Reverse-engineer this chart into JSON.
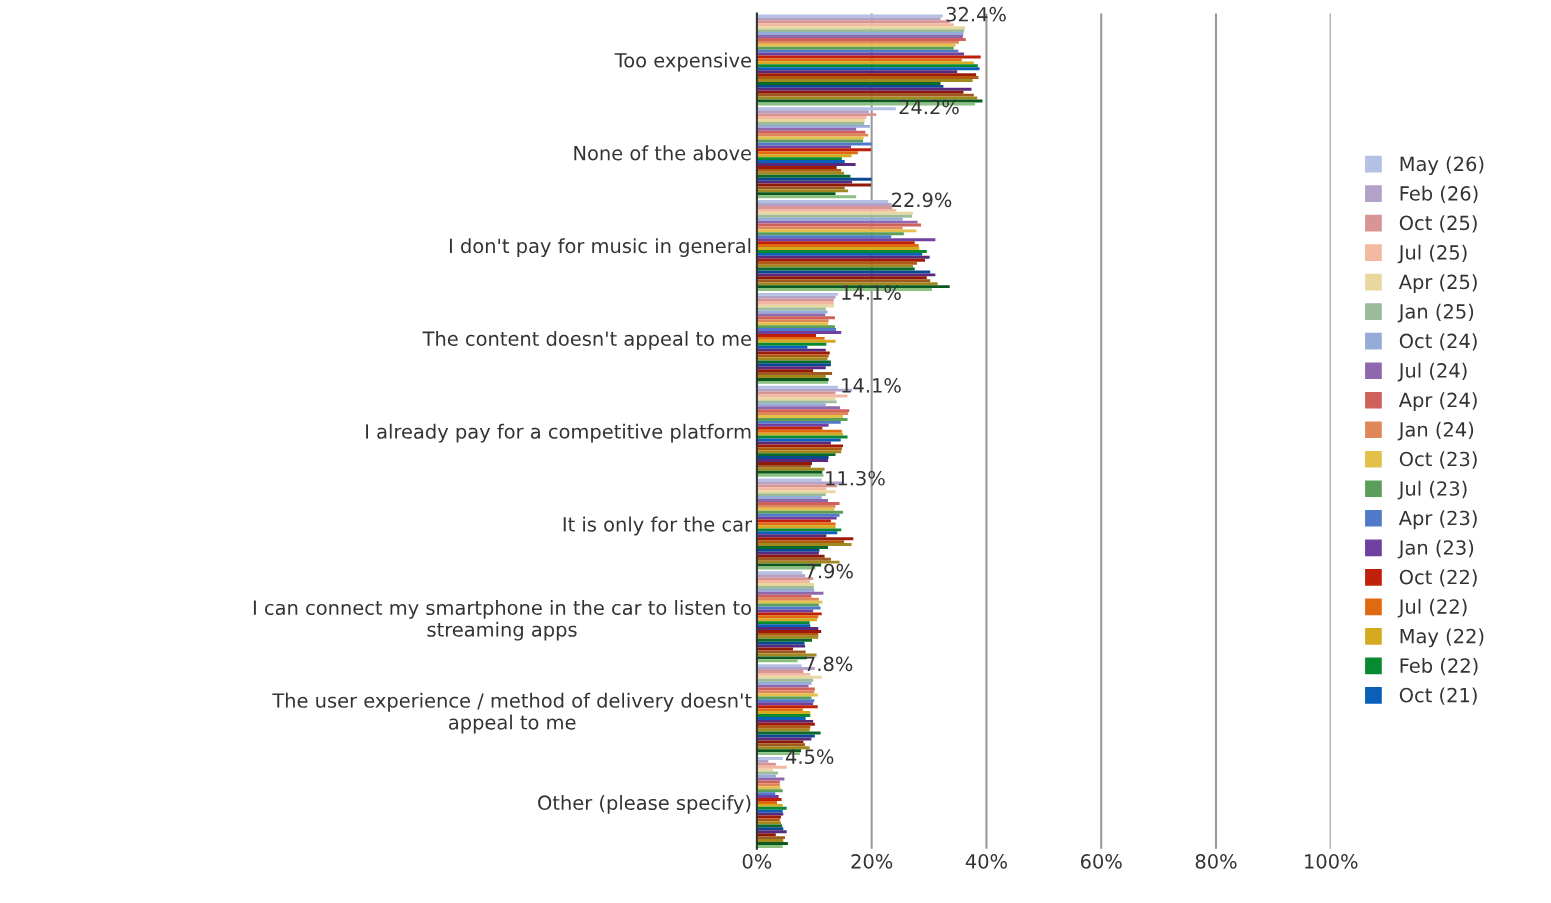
{
  "chart_data": {
    "type": "bar",
    "orientation": "horizontal",
    "categories": [
      "Too expensive",
      "None of the above",
      "I don't pay for music in general",
      "The content doesn't appeal to me",
      "I already pay for a competitive platform",
      "It is only for the car",
      "I can connect my smartphone in the car to listen to\nstreaming apps",
      "The user experience / method of delivery doesn't\nappeal to me",
      "Other (please specify)"
    ],
    "series": [
      {
        "name": "May (26)",
        "color": "#b4c0e4",
        "values": [
          32.4,
          24.2,
          22.9,
          14.1,
          14.1,
          11.3,
          7.9,
          7.8,
          4.5
        ],
        "value_labels": [
          "32.4%",
          "24.2%",
          "22.9%",
          "14.1%",
          "14.1%",
          "11.3%",
          "7.9%",
          "7.8%",
          "4.5%"
        ]
      },
      {
        "name": "Feb (26)",
        "color": "#b3a2c7",
        "values": [
          32.0,
          19.5,
          23.5,
          13.7,
          16.6,
          14.9,
          8.4,
          10.1,
          2.0
        ]
      },
      {
        "name": "Oct (25)",
        "color": "#d99594",
        "values": [
          33.6,
          20.8,
          23.6,
          13.4,
          13.7,
          14.0,
          9.8,
          8.1,
          3.3
        ]
      },
      {
        "name": "Jul (25)",
        "color": "#f2b8a2",
        "values": [
          34.3,
          19.1,
          24.3,
          13.4,
          15.8,
          12.1,
          9.2,
          9.3,
          5.2
        ]
      },
      {
        "name": "Apr (25)",
        "color": "#e8d8a0",
        "values": [
          36.3,
          18.8,
          27.2,
          13.4,
          13.7,
          13.7,
          10.0,
          11.3,
          2.8
        ]
      },
      {
        "name": "Jan (25)",
        "color": "#9bbb9b",
        "values": [
          36.1,
          18.7,
          27.0,
          12.0,
          13.9,
          12.0,
          9.9,
          9.8,
          3.7
        ]
      },
      {
        "name": "Oct (24)",
        "color": "#95abd8",
        "values": [
          36.0,
          19.7,
          25.4,
          12.3,
          12.0,
          11.3,
          10.0,
          9.5,
          3.3
        ]
      },
      {
        "name": "Jul (24)",
        "color": "#8e68ad",
        "values": [
          35.9,
          17.3,
          28.0,
          11.9,
          14.5,
          12.4,
          11.6,
          9.0,
          4.8
        ]
      },
      {
        "name": "Apr (24)",
        "color": "#d0605b",
        "values": [
          36.4,
          18.9,
          28.6,
          13.6,
          16.1,
          14.4,
          9.5,
          10.1,
          4.0
        ]
      },
      {
        "name": "Jan (24)",
        "color": "#e0875a",
        "values": [
          35.2,
          19.4,
          25.4,
          12.5,
          15.9,
          13.7,
          10.8,
          10.0,
          4.0
        ]
      },
      {
        "name": "Oct (23)",
        "color": "#e3c04a",
        "values": [
          34.6,
          18.6,
          27.8,
          12.4,
          15.0,
          13.5,
          11.4,
          10.6,
          4.1
        ]
      },
      {
        "name": "Jul (23)",
        "color": "#5a9e5a",
        "values": [
          34.3,
          18.5,
          25.6,
          13.6,
          15.8,
          15.0,
          10.8,
          9.5,
          4.5
        ]
      },
      {
        "name": "Apr (23)",
        "color": "#4f7ac8",
        "values": [
          35.1,
          20.0,
          23.4,
          13.8,
          14.6,
          14.4,
          11.1,
          10.0,
          3.2
        ]
      },
      {
        "name": "Jan (23)",
        "color": "#7040a0",
        "values": [
          36.1,
          16.4,
          31.1,
          14.7,
          12.5,
          13.9,
          9.8,
          9.8,
          3.8
        ]
      },
      {
        "name": "Oct (22)",
        "color": "#c0200a",
        "values": [
          39.0,
          19.9,
          27.5,
          10.3,
          11.4,
          12.9,
          11.3,
          10.6,
          4.3
        ]
      },
      {
        "name": "Jul (22)",
        "color": "#e06a10",
        "values": [
          35.7,
          17.6,
          28.2,
          11.8,
          14.8,
          13.7,
          10.7,
          8.0,
          3.5
        ]
      },
      {
        "name": "May (22)",
        "color": "#d4aa20",
        "values": [
          37.8,
          16.5,
          28.3,
          13.7,
          15.0,
          13.7,
          10.5,
          9.3,
          4.5
        ]
      },
      {
        "name": "Feb (22)",
        "color": "#0a8a30",
        "values": [
          38.5,
          14.8,
          29.6,
          12.1,
          15.8,
          14.7,
          9.2,
          9.3,
          5.2
        ]
      },
      {
        "name": "Oct (21)",
        "color": "#0a60b8",
        "values": [
          38.8,
          15.3,
          28.8,
          8.8,
          14.6,
          14.0,
          9.3,
          8.5,
          4.5
        ]
      },
      {
        "color": "#5a2a7a",
        "values": [
          34.9,
          17.2,
          30.1,
          12.0,
          12.9,
          12.1,
          10.7,
          9.8,
          4.6
        ]
      },
      {
        "color": "#a01a0a",
        "values": [
          38.2,
          13.9,
          29.3,
          12.7,
          15.0,
          16.8,
          11.2,
          10.1,
          4.2
        ]
      },
      {
        "color": "#b05a10",
        "values": [
          38.6,
          14.7,
          27.9,
          12.5,
          14.8,
          15.2,
          10.7,
          9.3,
          4.0
        ]
      },
      {
        "color": "#a08a20",
        "values": [
          37.6,
          15.2,
          27.2,
          12.3,
          14.7,
          16.5,
          10.7,
          9.2,
          4.2
        ]
      },
      {
        "color": "#0a6a2a",
        "values": [
          32.0,
          16.3,
          27.5,
          12.9,
          13.7,
          12.4,
          9.6,
          11.1,
          4.4
        ]
      },
      {
        "color": "#0a4a90",
        "values": [
          32.5,
          20.0,
          30.2,
          12.9,
          12.5,
          10.9,
          8.3,
          10.1,
          4.6
        ]
      },
      {
        "color": "#5a2a80",
        "values": [
          37.4,
          16.6,
          31.1,
          12.0,
          12.4,
          10.8,
          8.4,
          9.5,
          5.2
        ]
      },
      {
        "color": "#901a0a",
        "values": [
          36.0,
          19.9,
          29.6,
          9.8,
          9.6,
          11.8,
          6.3,
          8.1,
          3.3
        ]
      },
      {
        "color": "#a05a20",
        "values": [
          37.8,
          15.3,
          30.2,
          13.1,
          9.4,
          12.9,
          8.5,
          8.4,
          4.9
        ]
      },
      {
        "color": "#a08a20",
        "values": [
          38.4,
          15.9,
          31.5,
          12.0,
          11.8,
          14.4,
          10.4,
          9.2,
          4.6
        ]
      },
      {
        "color": "#0a5a20",
        "values": [
          39.3,
          13.7,
          33.6,
          12.5,
          11.4,
          11.2,
          8.7,
          7.7,
          5.4
        ]
      },
      {
        "color": "#8ac080",
        "values": [
          38.0,
          17.3,
          30.5,
          12.4,
          11.6,
          10.2,
          7.1,
          7.5,
          4.5
        ]
      }
    ],
    "xlim": [
      0,
      100
    ],
    "xticks": [
      {
        "value": 0,
        "label": "0%"
      },
      {
        "value": 20,
        "label": "20%"
      },
      {
        "value": 40,
        "label": "40%"
      },
      {
        "value": 60,
        "label": "60%"
      },
      {
        "value": 80,
        "label": "80%"
      },
      {
        "value": 100,
        "label": "100%"
      }
    ],
    "grid": "x",
    "legend": "right",
    "marker": "square"
  }
}
